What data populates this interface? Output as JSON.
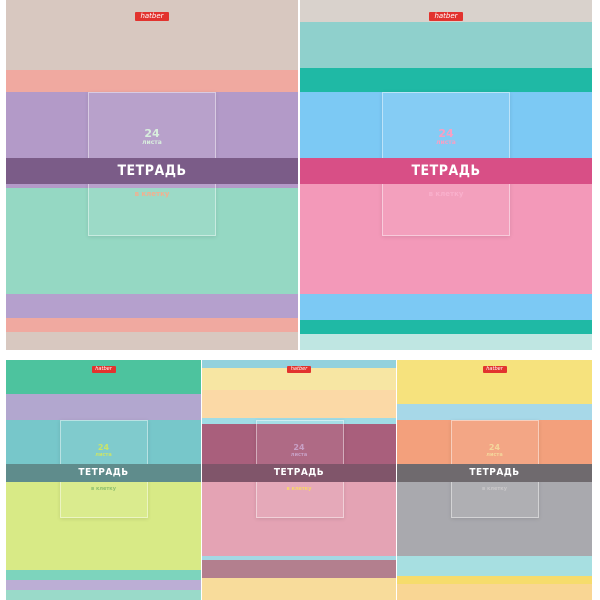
{
  "products": [
    {
      "id": "top-left",
      "logo": "hatber",
      "sheet_count": "24",
      "sheet_word": "листа",
      "title": "ТЕТРАДЬ",
      "ruling": "в клетку",
      "colors": {
        "band": "#7b5c88",
        "count_text": "#d8eedd",
        "ruling_text": "#f2b08f"
      },
      "stripes": [
        "#d8c8c0",
        "#d8c8c0",
        "#f0a9a0",
        "#b39ac8",
        "#b39ac8",
        "#95d8c3",
        "#95d8c3",
        "#b5a0cd",
        "#f0a9a0",
        "#d8c8c0"
      ]
    },
    {
      "id": "top-right",
      "logo": "hatber",
      "sheet_count": "24",
      "sheet_word": "листа",
      "title": "ТЕТРАДЬ",
      "ruling": "в клетку",
      "colors": {
        "band": "#d84f86",
        "count_text": "#f6a0c4",
        "ruling_text": "#f9b0cc"
      },
      "stripes": [
        "#d9d2cc",
        "#8fd0cc",
        "#1fb9a5",
        "#7cc9f4",
        "#f399b9",
        "#f399b9",
        "#7cc9f4",
        "#1fb9a5",
        "#bfe6e2"
      ]
    },
    {
      "id": "bottom-left",
      "logo": "hatber",
      "sheet_count": "24",
      "sheet_word": "листа",
      "title": "ТЕТРАДЬ",
      "ruling": "в клетку",
      "colors": {
        "band": "#5f8c8c",
        "count_text": "#c9e46a",
        "ruling_text": "#8fbf6d"
      },
      "stripes": [
        "#4dc39e",
        "#b2a7cf",
        "#77c7ca",
        "#77c7ca",
        "#d8ea86",
        "#d8ea86",
        "#7dd4bd",
        "#bcaed5",
        "#9adac9"
      ]
    },
    {
      "id": "bottom-middle",
      "logo": "hatber",
      "sheet_count": "24",
      "sheet_word": "листа",
      "title": "ТЕТРАДЬ",
      "ruling": "в клетку",
      "colors": {
        "band": "#80556a",
        "count_text": "#c8a0c5",
        "ruling_text": "#f8d56a"
      },
      "stripes": [
        "#93d1dd",
        "#f7e6a3",
        "#fbd9a6",
        "#a0dce6",
        "#a95f7c",
        "#e4a3b4",
        "#e4a3b4",
        "#a4d8e4",
        "#b37f8e",
        "#f8dc9b"
      ]
    },
    {
      "id": "bottom-right",
      "logo": "hatber",
      "sheet_count": "24",
      "sheet_word": "листа",
      "title": "ТЕТРАДЬ",
      "ruling": "в клетку",
      "colors": {
        "band": "#6f6a6e",
        "count_text": "#f4d69b",
        "ruling_text": "#c9c7c9"
      },
      "stripes": [
        "#f6e27d",
        "#a7d8e8",
        "#f3a07c",
        "#a9a9ae",
        "#a9a9ae",
        "#a7dfe1",
        "#f6dc6c",
        "#f9d694"
      ]
    }
  ]
}
